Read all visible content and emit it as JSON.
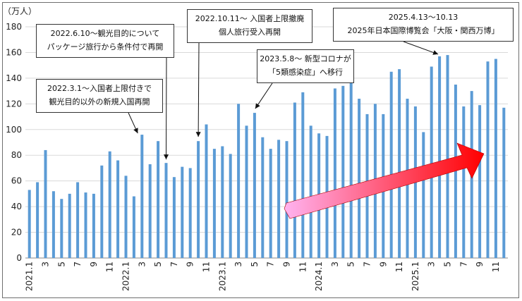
{
  "chart_data": {
    "type": "bar",
    "unit": "（万人）",
    "ylim": [
      0,
      180
    ],
    "yticks": [
      0,
      20,
      40,
      60,
      80,
      100,
      120,
      140,
      160,
      180
    ],
    "grid": true,
    "bar_color": "#5b9bd5",
    "categories": [
      "2021.1",
      "2",
      "3",
      "4",
      "5",
      "6",
      "7",
      "8",
      "9",
      "10",
      "11",
      "12",
      "2022.1",
      "2",
      "3",
      "4",
      "5",
      "6",
      "7",
      "8",
      "9",
      "10",
      "11",
      "12",
      "2023.1",
      "2",
      "3",
      "4",
      "5",
      "6",
      "7",
      "8",
      "9",
      "10",
      "11",
      "12",
      "2024.1",
      "2",
      "3",
      "4",
      "5",
      "6",
      "7",
      "8",
      "9",
      "10",
      "11",
      "12",
      "2025.1",
      "2",
      "3",
      "4",
      "5",
      "6",
      "7",
      "8",
      "9",
      "10",
      "11",
      "12"
    ],
    "values": [
      53,
      59,
      84,
      52,
      46,
      50,
      59,
      51,
      50,
      72,
      83,
      76,
      64,
      48,
      96,
      73,
      91,
      74,
      63,
      71,
      70,
      91,
      104,
      85,
      87,
      81,
      120,
      103,
      113,
      94,
      85,
      92,
      91,
      121,
      129,
      103,
      97,
      95,
      132,
      134,
      138,
      124,
      112,
      120,
      112,
      145,
      147,
      124,
      118,
      98,
      149,
      157,
      158,
      135,
      118,
      130,
      119,
      153,
      155,
      117
    ],
    "x_tick_labels": [
      {
        "i": 0,
        "text": "2021.1"
      },
      {
        "i": 2,
        "text": "3"
      },
      {
        "i": 4,
        "text": "5"
      },
      {
        "i": 6,
        "text": "7"
      },
      {
        "i": 8,
        "text": "9"
      },
      {
        "i": 10,
        "text": "11"
      },
      {
        "i": 12,
        "text": "2022.1"
      },
      {
        "i": 14,
        "text": "3"
      },
      {
        "i": 16,
        "text": "5"
      },
      {
        "i": 18,
        "text": "7"
      },
      {
        "i": 20,
        "text": "9"
      },
      {
        "i": 22,
        "text": "11"
      },
      {
        "i": 24,
        "text": "2023.1"
      },
      {
        "i": 26,
        "text": "3"
      },
      {
        "i": 28,
        "text": "5"
      },
      {
        "i": 30,
        "text": "7"
      },
      {
        "i": 32,
        "text": "9"
      },
      {
        "i": 34,
        "text": "11"
      },
      {
        "i": 36,
        "text": "2024.1"
      },
      {
        "i": 38,
        "text": "3"
      },
      {
        "i": 40,
        "text": "5"
      },
      {
        "i": 42,
        "text": "7"
      },
      {
        "i": 44,
        "text": "9"
      },
      {
        "i": 46,
        "text": "11"
      },
      {
        "i": 48,
        "text": "2025.1"
      },
      {
        "i": 50,
        "text": "3"
      },
      {
        "i": 52,
        "text": "5"
      },
      {
        "i": 54,
        "text": "7"
      },
      {
        "i": 56,
        "text": "9"
      },
      {
        "i": 58,
        "text": "11"
      }
    ],
    "annotations": [
      {
        "lines": [
          "2022.3.1～入国者上限付きで",
          "観光目的以外の新規入国再開"
        ],
        "points_to": "2022.3"
      },
      {
        "lines": [
          "2022.6.10～観光目的について",
          "パッケージ旅行から条件付で再開"
        ],
        "points_to": "2022.6"
      },
      {
        "lines": [
          "2022.10.11～ 入国者上限撤廃",
          "個人旅行受入再開"
        ],
        "points_to": "2022.10"
      },
      {
        "lines": [
          "2023.5.8～ 新型コロナが",
          "「5類感染症」へ移行"
        ],
        "points_to": "2023.5"
      },
      {
        "lines": [
          "2025.4.13～10.13",
          "2025年日本国際博覧会「大阪・関西万博」"
        ],
        "points_to": "2025.4"
      }
    ],
    "trend_arrow": {
      "from_color": "#ffb3f0",
      "to_color": "#ff0000"
    }
  }
}
